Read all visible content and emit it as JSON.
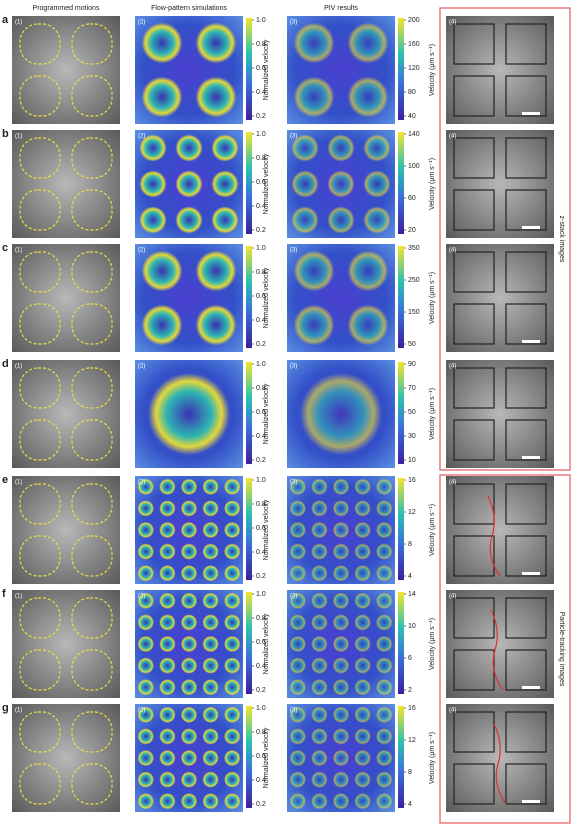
{
  "headers": [
    "Programmed motions",
    "Flow-pattern simulations",
    "PIV results"
  ],
  "panel_labels": [
    "(1)",
    "(2)",
    "(3)",
    "(4)"
  ],
  "colorbar_labels": {
    "simulation": "Normalized velocity",
    "piv": "Velocity (μm s⁻¹)"
  },
  "side_labels": [
    "z-stack images",
    "Particle-tracking images"
  ],
  "rows": [
    {
      "letter": "a",
      "sim_ticks": [
        "1.0",
        "0.8",
        "0.6",
        "0.4",
        "0.2"
      ],
      "piv_ticks": [
        "200",
        "160",
        "120",
        "80",
        "40"
      ]
    },
    {
      "letter": "b",
      "sim_ticks": [
        "1.0",
        "0.8",
        "0.6",
        "0.4",
        "0.2"
      ],
      "piv_ticks": [
        "140",
        "100",
        "60",
        "20"
      ]
    },
    {
      "letter": "c",
      "sim_ticks": [
        "1.0",
        "0.8",
        "0.6",
        "0.4",
        "0.2"
      ],
      "piv_ticks": [
        "350",
        "250",
        "150",
        "50"
      ]
    },
    {
      "letter": "d",
      "sim_ticks": [
        "1.0",
        "0.8",
        "0.6",
        "0.4",
        "0.2"
      ],
      "piv_ticks": [
        "90",
        "70",
        "50",
        "30",
        "10"
      ]
    },
    {
      "letter": "e",
      "sim_ticks": [
        "1.0",
        "0.8",
        "0.6",
        "0.4",
        "0.2"
      ],
      "piv_ticks": [
        "16",
        "12",
        "8",
        "4"
      ]
    },
    {
      "letter": "f",
      "sim_ticks": [
        "1.0",
        "0.8",
        "0.6",
        "0.4",
        "0.2"
      ],
      "piv_ticks": [
        "14",
        "10",
        "6",
        "2"
      ]
    },
    {
      "letter": "g",
      "sim_ticks": [
        "1.0",
        "0.8",
        "0.6",
        "0.4",
        "0.2"
      ],
      "piv_ticks": [
        "16",
        "12",
        "8",
        "4"
      ]
    }
  ]
}
